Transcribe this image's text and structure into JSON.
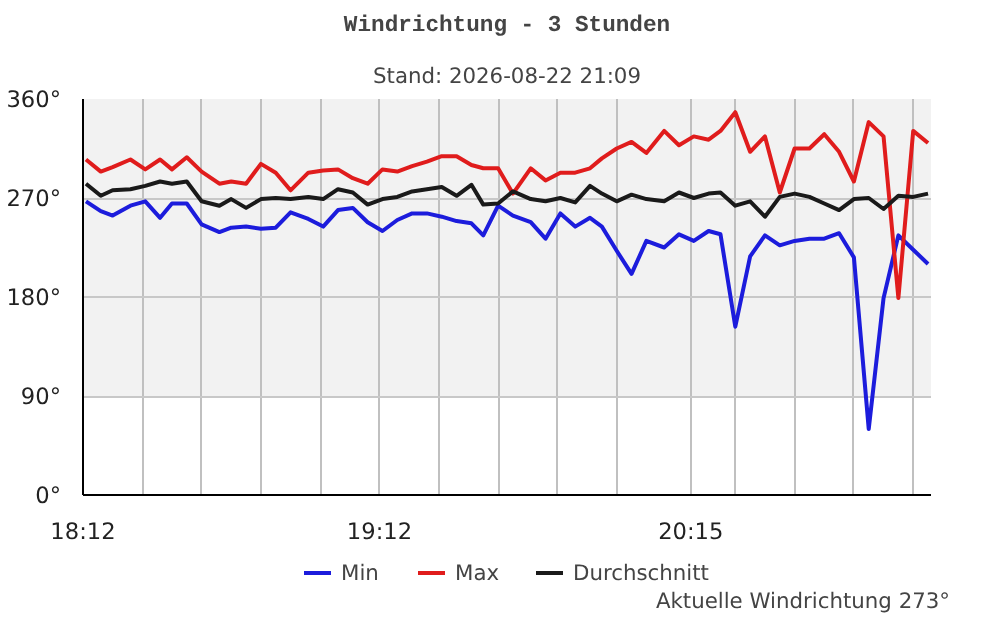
{
  "chart_data": {
    "type": "line",
    "title": "Windrichtung - 3 Stunden",
    "subtitle": "Stand: 2026-08-22 21:09",
    "annotations": [
      "Aktuelle Windrichtung 273°"
    ],
    "x": [
      18.21,
      18.26,
      18.3,
      18.36,
      18.41,
      18.46,
      18.5,
      18.55,
      18.6,
      18.66,
      18.7,
      18.75,
      18.8,
      18.85,
      18.9,
      18.96,
      19.01,
      19.06,
      19.11,
      19.16,
      19.21,
      19.26,
      19.31,
      19.36,
      19.41,
      19.46,
      19.51,
      19.55,
      19.6,
      19.65,
      19.71,
      19.76,
      19.81,
      19.86,
      19.91,
      19.95,
      20.0,
      20.05,
      20.1,
      20.16,
      20.21,
      20.26,
      20.31,
      20.35,
      20.4,
      20.45,
      20.5,
      20.55,
      20.6,
      20.65,
      20.7,
      20.75,
      20.8,
      20.85,
      20.9,
      20.95,
      21.0,
      21.05
    ],
    "series": [
      {
        "name": "Min",
        "color": "#1c1cdc",
        "values": [
          267,
          258,
          254,
          263,
          267,
          252,
          265,
          265,
          246,
          239,
          243,
          244,
          242,
          243,
          257,
          251,
          244,
          259,
          261,
          248,
          240,
          250,
          256,
          256,
          253,
          249,
          247,
          236,
          263,
          254,
          248,
          233,
          256,
          244,
          252,
          244,
          222,
          201,
          231,
          225,
          237,
          231,
          240,
          237,
          153,
          217,
          236,
          227,
          231,
          233,
          233,
          238,
          216,
          60,
          179,
          236,
          223,
          210
        ]
      },
      {
        "name": "Max",
        "color": "#e01c1c",
        "values": [
          305,
          294,
          298,
          305,
          296,
          305,
          296,
          307,
          294,
          283,
          285,
          283,
          301,
          293,
          277,
          293,
          295,
          296,
          288,
          283,
          296,
          294,
          299,
          303,
          308,
          308,
          300,
          297,
          297,
          274,
          297,
          286,
          293,
          293,
          297,
          306,
          315,
          321,
          311,
          331,
          318,
          326,
          323,
          331,
          348,
          312,
          326,
          275,
          315,
          315,
          328,
          312,
          285,
          339,
          326,
          179,
          331,
          320
        ]
      },
      {
        "name": "Durchschnitt",
        "color": "#1a1a1a",
        "values": [
          283,
          272,
          277,
          278,
          281,
          285,
          283,
          285,
          267,
          263,
          269,
          261,
          269,
          270,
          269,
          271,
          269,
          278,
          275,
          264,
          269,
          271,
          276,
          278,
          280,
          272,
          282,
          264,
          265,
          276,
          269,
          267,
          270,
          266,
          281,
          274,
          267,
          273,
          269,
          267,
          275,
          270,
          274,
          275,
          263,
          267,
          253,
          271,
          274,
          271,
          265,
          259,
          269,
          270,
          260,
          272,
          271,
          274
        ]
      }
    ],
    "xlim": [
      18.2,
      21.06
    ],
    "ylim": [
      0,
      360
    ],
    "xticks": [
      {
        "value": 18.2,
        "label": "18:12"
      },
      {
        "value": 18.4,
        "label": null
      },
      {
        "value": 18.6,
        "label": null
      },
      {
        "value": 18.8,
        "label": null
      },
      {
        "value": 19.0,
        "label": null
      },
      {
        "value": 19.2,
        "label": "19:12"
      },
      {
        "value": 19.4,
        "label": null
      },
      {
        "value": 19.6,
        "label": null
      },
      {
        "value": 19.8,
        "label": null
      },
      {
        "value": 20.0,
        "label": null
      },
      {
        "value": 20.25,
        "label": "20:15"
      },
      {
        "value": 20.4,
        "label": null
      },
      {
        "value": 20.6,
        "label": null
      },
      {
        "value": 20.8,
        "label": null
      },
      {
        "value": 21.0,
        "label": null
      }
    ],
    "yticks": [
      {
        "value": 0,
        "label": "0°"
      },
      {
        "value": 90,
        "label": "90°"
      },
      {
        "value": 180,
        "label": "180°"
      },
      {
        "value": 270,
        "label": "270°"
      },
      {
        "value": 360,
        "label": "360°"
      }
    ],
    "bands": [
      {
        "axis": "y",
        "from": 90,
        "to": 360,
        "label": null,
        "color": "#f2f2f2"
      }
    ],
    "grid": true,
    "legend": "bottom",
    "marker": "none",
    "line_style": "solid"
  }
}
